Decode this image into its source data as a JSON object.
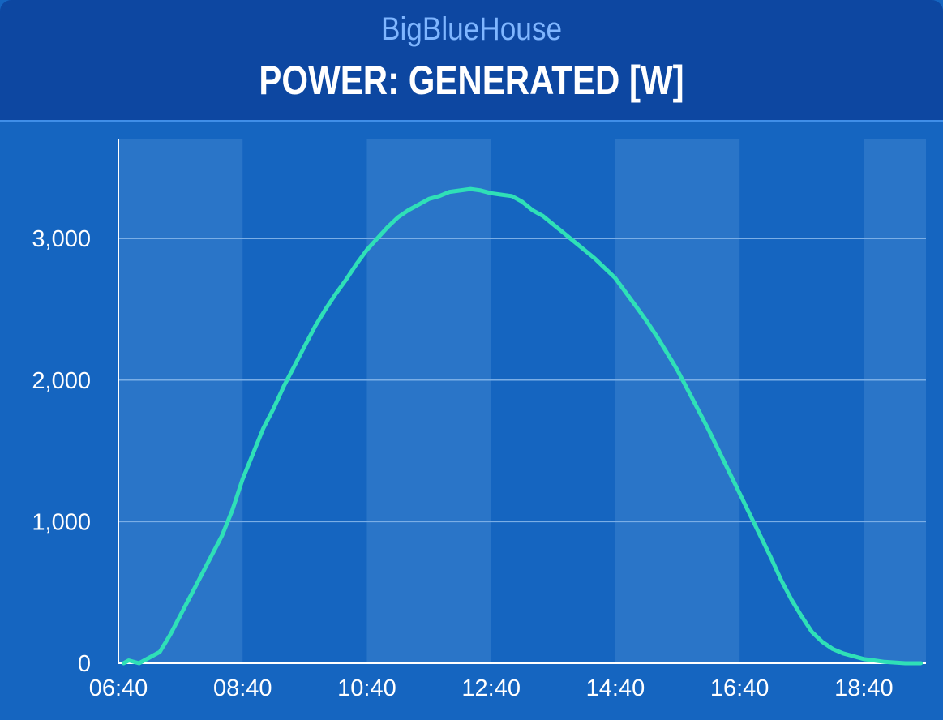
{
  "header": {
    "subtitle": "BigBlueHouse",
    "title": "POWER: GENERATED [W]"
  },
  "colors": {
    "background": "#1565c0",
    "header": "#0d47a1",
    "band": "#2a75c8",
    "line": "#2fe0b7",
    "grid": "#7aaee6"
  },
  "chart_data": {
    "type": "line",
    "title": "POWER: GENERATED [W]",
    "xlabel": "",
    "ylabel": "",
    "x_unit": "time of day",
    "xlim": [
      "06:40",
      "19:40"
    ],
    "ylim": [
      0,
      3700
    ],
    "x_ticks": [
      "06:40",
      "08:40",
      "10:40",
      "12:40",
      "14:40",
      "16:40",
      "18:40"
    ],
    "y_ticks": [
      0,
      1000,
      2000,
      3000
    ],
    "y_tick_labels": [
      "0",
      "1,000",
      "2,000",
      "3,000"
    ],
    "grid": true,
    "shaded_bands": [
      [
        "06:40",
        "08:40"
      ],
      [
        "10:40",
        "12:40"
      ],
      [
        "14:40",
        "16:40"
      ],
      [
        "18:40",
        "19:40"
      ]
    ],
    "series": [
      {
        "x": [
          "06:45",
          "06:50",
          "07:00",
          "07:10",
          "07:20",
          "07:30",
          "07:40",
          "07:50",
          "08:00",
          "08:10",
          "08:20",
          "08:30",
          "08:40",
          "08:50",
          "09:00",
          "09:10",
          "09:20",
          "09:30",
          "09:40",
          "09:50",
          "10:00",
          "10:10",
          "10:20",
          "10:30",
          "10:40",
          "10:50",
          "11:00",
          "11:10",
          "11:20",
          "11:30",
          "11:40",
          "11:50",
          "12:00",
          "12:10",
          "12:20",
          "12:30",
          "12:40",
          "12:50",
          "13:00",
          "13:10",
          "13:20",
          "13:30",
          "13:40",
          "13:50",
          "14:00",
          "14:10",
          "14:20",
          "14:30",
          "14:40",
          "14:50",
          "15:00",
          "15:10",
          "15:20",
          "15:30",
          "15:40",
          "15:50",
          "16:00",
          "16:10",
          "16:20",
          "16:30",
          "16:40",
          "16:50",
          "17:00",
          "17:10",
          "17:20",
          "17:30",
          "17:40",
          "17:50",
          "18:00",
          "18:10",
          "18:20",
          "18:30",
          "18:40",
          "18:50",
          "19:00",
          "19:10",
          "19:20",
          "19:30",
          "19:35"
        ],
        "y": [
          0,
          20,
          0,
          40,
          80,
          200,
          340,
          480,
          620,
          760,
          900,
          1080,
          1300,
          1480,
          1660,
          1800,
          1960,
          2100,
          2240,
          2380,
          2500,
          2610,
          2710,
          2820,
          2920,
          3000,
          3080,
          3150,
          3200,
          3240,
          3280,
          3300,
          3330,
          3340,
          3350,
          3340,
          3320,
          3310,
          3300,
          3260,
          3200,
          3160,
          3100,
          3040,
          2980,
          2920,
          2860,
          2790,
          2720,
          2620,
          2520,
          2420,
          2310,
          2190,
          2070,
          1930,
          1790,
          1650,
          1500,
          1350,
          1200,
          1050,
          900,
          750,
          590,
          450,
          330,
          220,
          150,
          100,
          70,
          50,
          30,
          20,
          10,
          5,
          0,
          0,
          0
        ]
      }
    ]
  }
}
